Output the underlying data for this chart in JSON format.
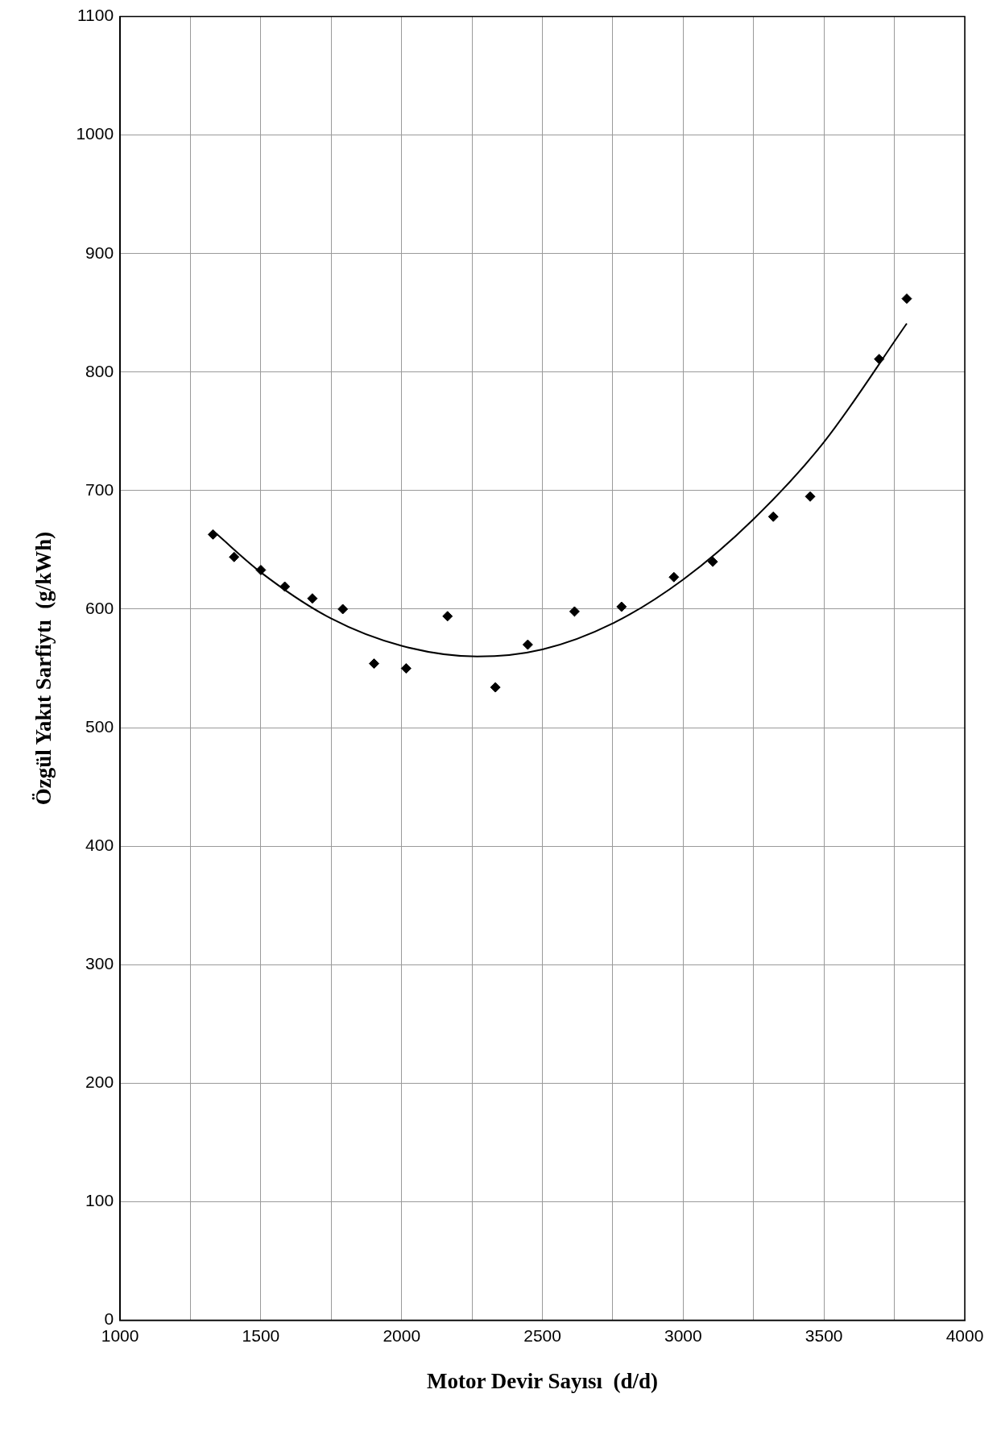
{
  "chart_data": {
    "type": "scatter",
    "xlabel": "Motor Devir Sayısı  (d/d)",
    "ylabel": "Özgül Yakıt Sarfiytı  (g/kWh)",
    "xlim": [
      1000,
      4000
    ],
    "ylim": [
      0,
      1100
    ],
    "xticks": [
      1000,
      {
        "value": 1250,
        "label": null
      },
      1500,
      {
        "value": 1750,
        "label": null
      },
      2000,
      {
        "value": 2250,
        "label": null
      },
      2500,
      {
        "value": 2750,
        "label": null
      },
      3000,
      {
        "value": 3250,
        "label": null
      },
      3500,
      {
        "value": 3750,
        "label": null
      },
      4000
    ],
    "yticks": [
      0,
      100,
      200,
      300,
      400,
      500,
      600,
      700,
      800,
      900,
      1000,
      1100
    ],
    "grid": true,
    "legend": false,
    "series": [
      {
        "type": "scatter",
        "marker": "diamond",
        "color": "#000000",
        "x": [
          1330,
          1405,
          1500,
          1585,
          1683,
          1791,
          1902,
          2016,
          2163,
          2333,
          2448,
          2614,
          2781,
          2967,
          3105,
          3320,
          3451,
          3696,
          3794
        ],
        "values": [
          663,
          644,
          633,
          619,
          609,
          600,
          554,
          550,
          594,
          534,
          570,
          598,
          602,
          627,
          640,
          678,
          695,
          811,
          862
        ]
      },
      {
        "type": "line",
        "marker": "none",
        "line_style": "solid",
        "color": "#000000",
        "x": [
          1340,
          1500,
          1750,
          2000,
          2268,
          2500,
          2750,
          3000,
          3250,
          3500,
          3794
        ],
        "values": [
          664,
          631,
          592,
          569,
          560,
          566,
          588,
          625,
          676,
          741,
          841
        ]
      }
    ]
  }
}
